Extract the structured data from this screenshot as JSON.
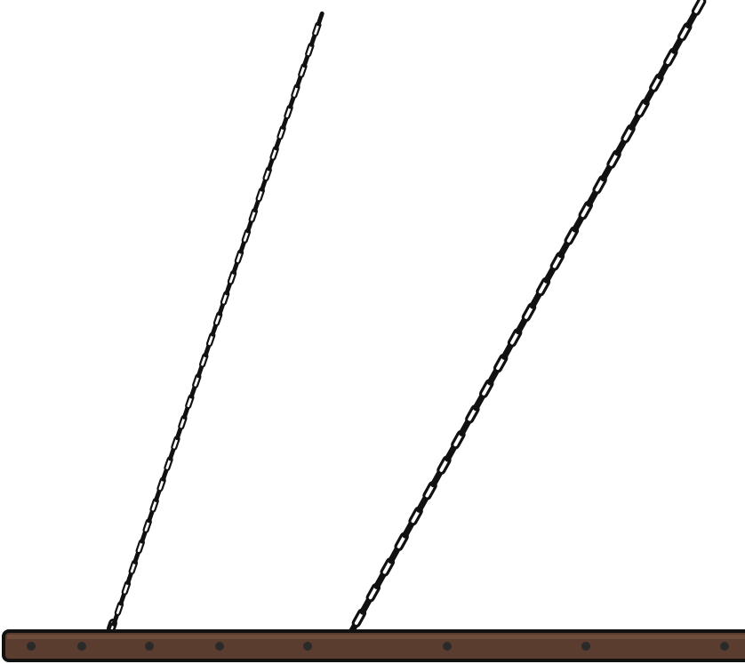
{
  "scene": {
    "background_color": "#ffffff",
    "outline_color": "#111111",
    "beam": {
      "fill_color": "#5a3d2e",
      "highlight_color": "#6e4c3a",
      "bolt_color": "#2a2a2a",
      "bolt_count": 8
    },
    "chains": [
      {
        "name": "left-chain",
        "link_color": "#ffffff"
      },
      {
        "name": "right-chain",
        "link_color": "#ffffff"
      }
    ]
  }
}
